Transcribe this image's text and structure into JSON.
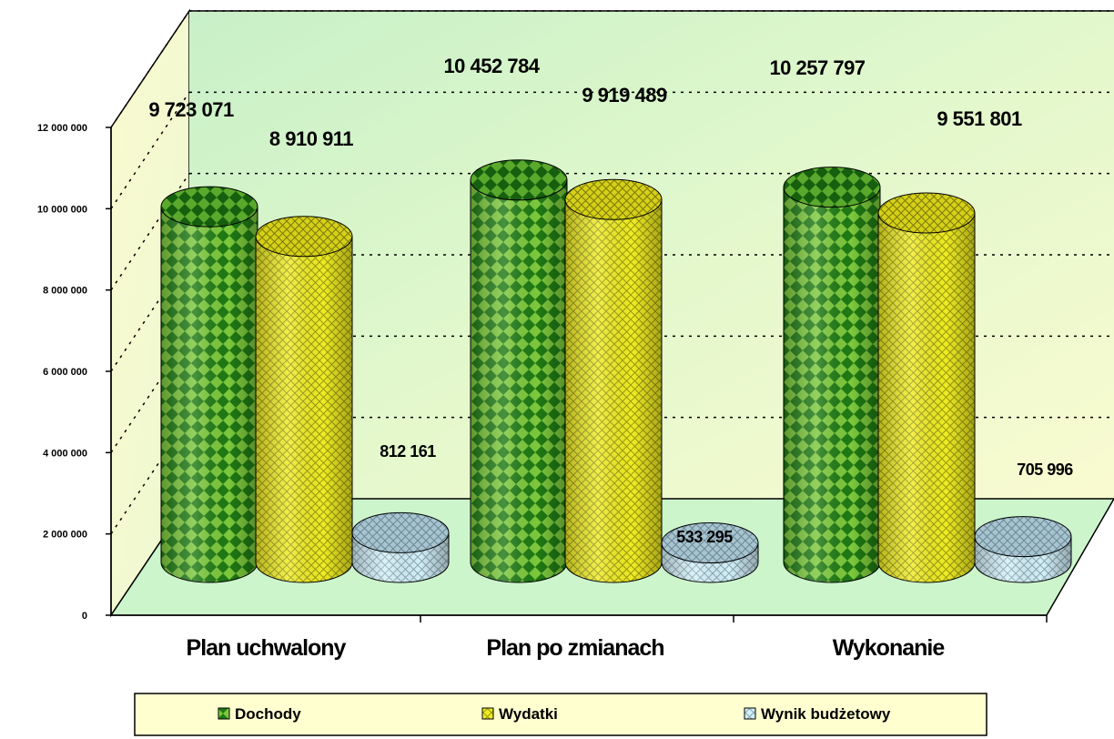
{
  "chart_data": {
    "type": "bar",
    "style": "3d-cylinder",
    "categories": [
      "Plan uchwalony",
      "Plan po zmianach",
      "Wykonanie"
    ],
    "series": [
      {
        "name": "Dochody",
        "values": [
          9723071,
          10452784,
          10257797
        ],
        "labels": [
          "9 723 071",
          "10 452 784",
          "10 257 797"
        ],
        "color": "#2f8f1a",
        "pattern": "diamond"
      },
      {
        "name": "Wydatki",
        "values": [
          8910911,
          9919489,
          9551801
        ],
        "labels": [
          "8 910 911",
          "9 919 489",
          "9 551 801"
        ],
        "color": "#e8e21a",
        "pattern": "crosshatch"
      },
      {
        "name": "Wynik budżetowy",
        "values": [
          812161,
          533295,
          705996
        ],
        "labels": [
          "812 161",
          "533 295",
          "705 996"
        ],
        "color": "#c8ecf4",
        "pattern": "crosshatch"
      }
    ],
    "y_ticks": [
      "0",
      "2 000 000",
      "4 000 000",
      "6 000 000",
      "8 000 000",
      "10 000 000",
      "12 000 000"
    ],
    "ylim": [
      0,
      12000000
    ],
    "grid": true,
    "legend_position": "bottom",
    "background_color": "#d8f5c8",
    "floor_color": "#ccf5cc",
    "legend_background": "#ffffd0"
  }
}
